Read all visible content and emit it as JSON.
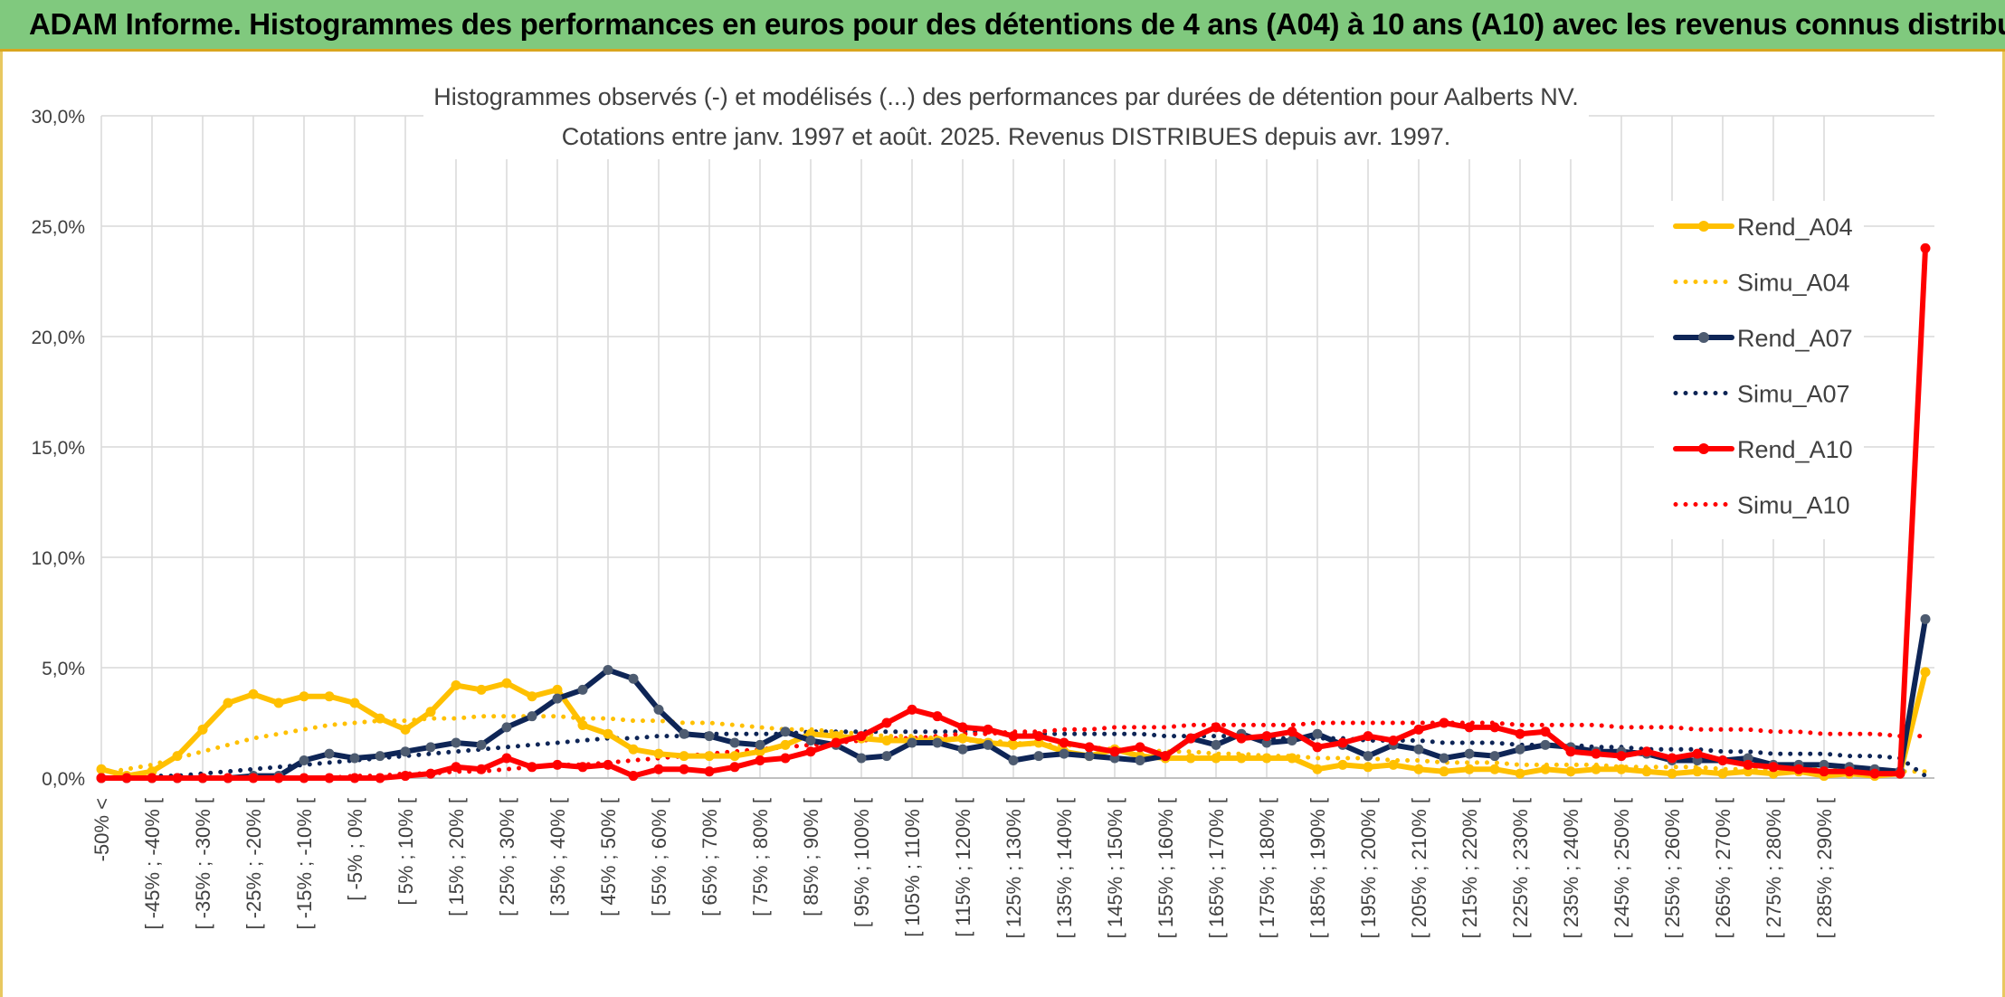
{
  "header": {
    "title": "ADAM Informe. Histogrammes des performances en euros pour des détentions de 4 ans (A04) à 10 ans (A10) avec les revenus connus distribués"
  },
  "colors": {
    "header_bg": "#80c97e",
    "A04": "#ffc000",
    "A07": "#0e2556",
    "A10": "#ff0000",
    "A07_marker": "#4d5b70",
    "grid": "#d9d9d9"
  },
  "chart_data": {
    "type": "line",
    "title": "Histogrammes observés (-) et modélisés (...) des performances par durées de détention pour Aalberts NV.",
    "subtitle": "Cotations entre janv. 1997 et août. 2025. Revenus DISTRIBUES depuis avr. 1997.",
    "xlabel": "",
    "ylabel": "",
    "ylim": [
      0,
      30
    ],
    "yticks": [
      "0,0%",
      "5,0%",
      "10,0%",
      "15,0%",
      "20,0%",
      "25,0%",
      "30,0%"
    ],
    "grid": true,
    "legend_position": "right",
    "tick_labels": [
      "-50% <",
      "[ -45% ; -40% [",
      "[ -35% ; -30% [",
      "[ -25% ; -20% [",
      "[ -15% ; -10% [",
      "[ -5% ; 0% [",
      "[ 5% ; 10% [",
      "[ 15% ; 20% [",
      "[ 25% ; 30% [",
      "[ 35% ; 40% [",
      "[ 45% ; 50% [",
      "[ 55% ; 60% [",
      "[ 65% ; 70% [",
      "[ 75% ; 80% [",
      "[ 85% ; 90% [",
      "[ 95% ; 100% [",
      "[ 105% ; 110% [",
      "[ 115% ; 120% [",
      "[ 125% ; 130% [",
      "[ 135% ; 140% [",
      "[ 145% ; 150% [",
      "[ 155% ; 160% [",
      "[ 165% ; 170% [",
      "[ 175% ; 180% [",
      "[ 185% ; 190% [",
      "[ 195% ; 200% [",
      "[ 205% ; 210% [",
      "[ 215% ; 220% [",
      "[ 225% ; 230% [",
      "[ 235% ; 240% [",
      "[ 245% ; 250% [",
      "[ 255% ; 260% [",
      "[ 265% ; 270% [",
      "[ 275% ; 280% [",
      "[ 285% ; 290% ["
    ],
    "series": [
      {
        "name": "Rend_A04",
        "style": "solid",
        "color": "#ffc000",
        "values": [
          0.4,
          0.1,
          0.3,
          1.0,
          2.2,
          3.4,
          3.8,
          3.4,
          3.7,
          3.7,
          3.4,
          2.7,
          2.2,
          3.0,
          4.2,
          4.0,
          4.3,
          3.7,
          4.0,
          2.4,
          2.0,
          1.3,
          1.1,
          1.0,
          1.0,
          1.0,
          1.2,
          1.5,
          2.0,
          1.9,
          1.8,
          1.7,
          1.7,
          1.7,
          1.8,
          1.6,
          1.5,
          1.6,
          1.2,
          1.0,
          1.3,
          1.0,
          0.9,
          0.9,
          0.9,
          0.9,
          0.9,
          0.9,
          0.4,
          0.6,
          0.5,
          0.6,
          0.4,
          0.3,
          0.4,
          0.4,
          0.2,
          0.4,
          0.3,
          0.4,
          0.4,
          0.3,
          0.2,
          0.3,
          0.2,
          0.3,
          0.2,
          0.3,
          0.1,
          0.2,
          0.1,
          0.2,
          4.8
        ]
      },
      {
        "name": "Simu_A04",
        "style": "dotted",
        "color": "#ffc000",
        "values": [
          0.2,
          0.4,
          0.6,
          0.9,
          1.2,
          1.5,
          1.8,
          2.0,
          2.2,
          2.4,
          2.5,
          2.6,
          2.6,
          2.7,
          2.7,
          2.8,
          2.8,
          2.8,
          2.8,
          2.7,
          2.7,
          2.6,
          2.6,
          2.5,
          2.5,
          2.4,
          2.3,
          2.2,
          2.2,
          2.1,
          2.0,
          1.9,
          1.9,
          1.8,
          1.7,
          1.7,
          1.6,
          1.5,
          1.5,
          1.4,
          1.3,
          1.3,
          1.2,
          1.2,
          1.1,
          1.1,
          1.0,
          1.0,
          0.9,
          0.9,
          0.9,
          0.8,
          0.8,
          0.7,
          0.7,
          0.7,
          0.6,
          0.6,
          0.6,
          0.6,
          0.5,
          0.5,
          0.5,
          0.5,
          0.4,
          0.4,
          0.4,
          0.4,
          0.4,
          0.3,
          0.3,
          0.3,
          0.3
        ]
      },
      {
        "name": "Rend_A07",
        "style": "solid",
        "color": "#0e2556",
        "values": [
          0.0,
          0.0,
          0.0,
          0.0,
          0.0,
          0.0,
          0.1,
          0.1,
          0.8,
          1.1,
          0.9,
          1.0,
          1.2,
          1.4,
          1.6,
          1.5,
          2.3,
          2.8,
          3.6,
          4.0,
          4.9,
          4.5,
          3.1,
          2.0,
          1.9,
          1.6,
          1.5,
          2.1,
          1.7,
          1.5,
          0.9,
          1.0,
          1.6,
          1.6,
          1.3,
          1.5,
          0.8,
          1.0,
          1.1,
          1.0,
          0.9,
          0.8,
          1.0,
          1.8,
          1.5,
          2.0,
          1.6,
          1.7,
          2.0,
          1.5,
          1.0,
          1.5,
          1.3,
          0.9,
          1.1,
          1.0,
          1.3,
          1.5,
          1.4,
          1.2,
          1.2,
          1.1,
          0.8,
          0.8,
          0.8,
          0.9,
          0.6,
          0.6,
          0.6,
          0.5,
          0.4,
          0.3,
          7.2
        ]
      },
      {
        "name": "Simu_A07",
        "style": "dotted",
        "color": "#0e2556",
        "values": [
          0.0,
          0.0,
          0.1,
          0.1,
          0.2,
          0.3,
          0.4,
          0.5,
          0.6,
          0.7,
          0.8,
          0.9,
          1.0,
          1.1,
          1.2,
          1.3,
          1.4,
          1.5,
          1.6,
          1.7,
          1.8,
          1.8,
          1.9,
          1.9,
          2.0,
          2.0,
          2.0,
          2.0,
          2.1,
          2.1,
          2.1,
          2.1,
          2.1,
          2.1,
          2.1,
          2.1,
          2.0,
          2.0,
          2.0,
          2.0,
          2.0,
          2.0,
          1.9,
          1.9,
          1.9,
          1.9,
          1.8,
          1.8,
          1.8,
          1.8,
          1.7,
          1.7,
          1.7,
          1.6,
          1.6,
          1.6,
          1.5,
          1.5,
          1.5,
          1.4,
          1.4,
          1.3,
          1.3,
          1.3,
          1.2,
          1.2,
          1.1,
          1.1,
          1.1,
          1.0,
          1.0,
          0.9,
          0.1
        ]
      },
      {
        "name": "Rend_A10",
        "style": "solid",
        "color": "#ff0000",
        "values": [
          0.0,
          0.0,
          0.0,
          0.0,
          0.0,
          0.0,
          0.0,
          0.0,
          0.0,
          0.0,
          0.0,
          0.0,
          0.1,
          0.2,
          0.5,
          0.4,
          0.9,
          0.5,
          0.6,
          0.5,
          0.6,
          0.1,
          0.4,
          0.4,
          0.3,
          0.5,
          0.8,
          0.9,
          1.2,
          1.6,
          1.9,
          2.5,
          3.1,
          2.8,
          2.3,
          2.2,
          1.9,
          1.9,
          1.6,
          1.4,
          1.2,
          1.4,
          1.0,
          1.8,
          2.3,
          1.8,
          1.9,
          2.1,
          1.4,
          1.6,
          1.9,
          1.7,
          2.2,
          2.5,
          2.3,
          2.3,
          2.0,
          2.1,
          1.2,
          1.1,
          1.0,
          1.2,
          0.9,
          1.1,
          0.8,
          0.6,
          0.5,
          0.4,
          0.3,
          0.3,
          0.2,
          0.2,
          24.0
        ]
      },
      {
        "name": "Simu_A10",
        "style": "dotted",
        "color": "#ff0000",
        "values": [
          0.0,
          0.0,
          0.0,
          0.0,
          0.0,
          0.0,
          0.0,
          0.0,
          0.0,
          0.0,
          0.1,
          0.1,
          0.2,
          0.2,
          0.3,
          0.3,
          0.4,
          0.5,
          0.6,
          0.6,
          0.7,
          0.8,
          0.9,
          1.0,
          1.1,
          1.2,
          1.3,
          1.4,
          1.5,
          1.6,
          1.7,
          1.8,
          1.8,
          1.9,
          2.0,
          2.0,
          2.1,
          2.1,
          2.2,
          2.2,
          2.3,
          2.3,
          2.3,
          2.4,
          2.4,
          2.4,
          2.4,
          2.4,
          2.5,
          2.5,
          2.5,
          2.5,
          2.5,
          2.5,
          2.5,
          2.5,
          2.4,
          2.4,
          2.4,
          2.4,
          2.3,
          2.3,
          2.3,
          2.2,
          2.2,
          2.2,
          2.1,
          2.1,
          2.0,
          2.0,
          2.0,
          1.9,
          1.9
        ]
      }
    ]
  }
}
